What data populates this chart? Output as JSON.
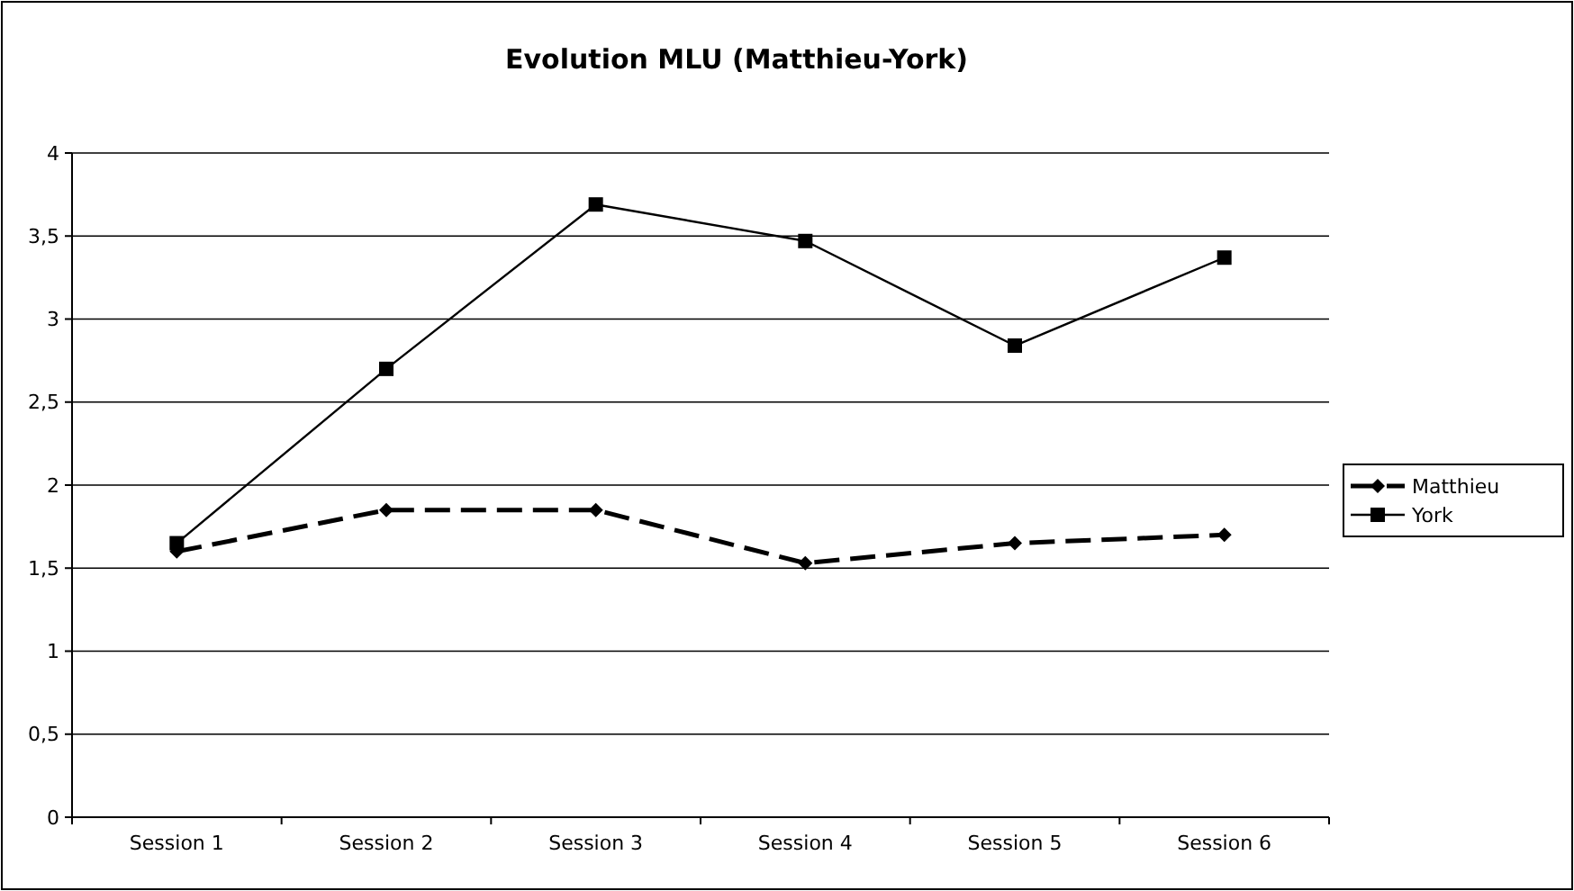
{
  "chart_data": {
    "type": "line",
    "title": "Evolution MLU (Matthieu-York)",
    "categories": [
      "Session 1",
      "Session 2",
      "Session 3",
      "Session 4",
      "Session 5",
      "Session 6"
    ],
    "series": [
      {
        "name": "Matthieu",
        "color": "#000000",
        "values": [
          1.6,
          1.85,
          1.85,
          1.53,
          1.65,
          1.7
        ],
        "marker": "diamond",
        "line_style": "dashed"
      },
      {
        "name": "York",
        "color": "#000000",
        "values": [
          1.65,
          2.7,
          3.69,
          3.47,
          2.84,
          3.37
        ],
        "marker": "square",
        "line_style": "solid"
      }
    ],
    "ylim": [
      0,
      4
    ],
    "yticks": [
      0,
      {
        "value": 0.5,
        "label": "0,5"
      },
      1,
      {
        "value": 1.5,
        "label": "1,5"
      },
      2,
      {
        "value": 2.5,
        "label": "2,5"
      },
      3,
      {
        "value": 3.5,
        "label": "3,5"
      },
      4
    ],
    "grid": "y",
    "legend": "right"
  }
}
